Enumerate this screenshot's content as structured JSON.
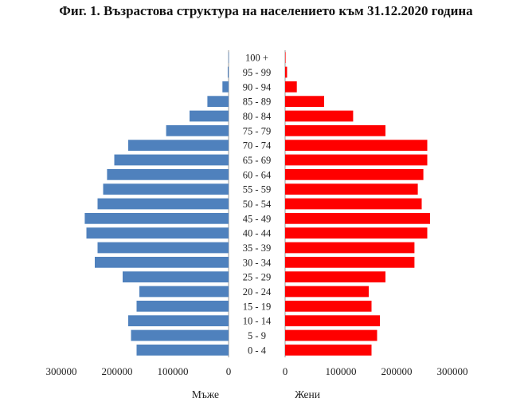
{
  "chart_data": {
    "type": "bar",
    "orientation": "horizontal-population-pyramid",
    "title": "Фиг. 1. Възрастова структура на населението към 31.12.2020 година",
    "categories": [
      "0 - 4",
      "5 - 9",
      "10 - 14",
      "15 - 19",
      "20 - 24",
      "25 - 29",
      "30 - 34",
      "35 - 39",
      "40 - 44",
      "45 - 49",
      "50 - 54",
      "55 - 59",
      "60 - 64",
      "65 - 69",
      "70 - 74",
      "75 - 79",
      "80 - 84",
      "85 - 89",
      "90 - 94",
      "95 - 99",
      "100 +"
    ],
    "series": [
      {
        "name": "Мъже",
        "color": "#4f81bd",
        "values": [
          165000,
          175000,
          180000,
          165000,
          160000,
          190000,
          240000,
          235000,
          255000,
          258000,
          235000,
          225000,
          218000,
          205000,
          180000,
          112000,
          70000,
          38000,
          11000,
          1500,
          200
        ]
      },
      {
        "name": "Жени",
        "color": "#ff0000",
        "values": [
          155000,
          165000,
          170000,
          155000,
          150000,
          180000,
          232000,
          232000,
          255000,
          260000,
          245000,
          238000,
          248000,
          255000,
          255000,
          180000,
          122000,
          70000,
          21000,
          3500,
          500
        ]
      }
    ],
    "xlim": [
      0,
      300000
    ],
    "left_ticks": [
      "300000",
      "200000",
      "100000",
      "0"
    ],
    "right_ticks": [
      "0",
      "100000",
      "200000",
      "300000"
    ],
    "grid": false,
    "legend_position": "bottom"
  }
}
